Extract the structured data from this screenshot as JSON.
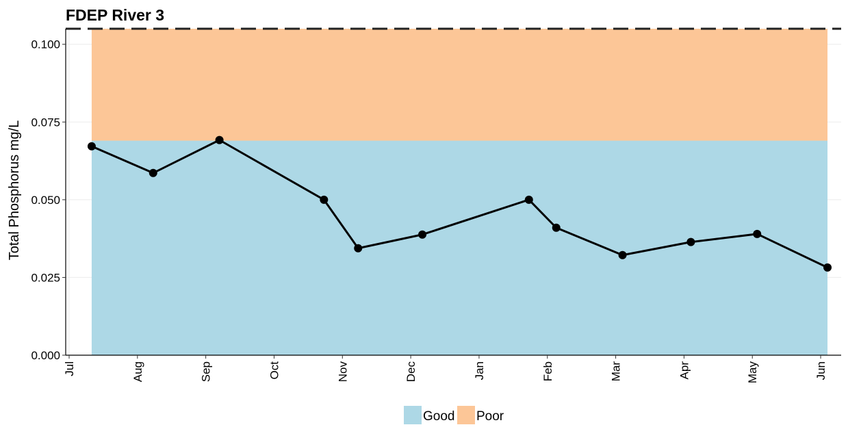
{
  "chart_data": {
    "type": "line",
    "title": "FDEP River 3",
    "xlabel": "",
    "ylabel": "Total Phosphorus mg/L",
    "ylim": [
      0,
      0.105
    ],
    "y_ticks": [
      "0.000",
      "0.025",
      "0.050",
      "0.075",
      "0.100"
    ],
    "y_tick_values": [
      0,
      0.025,
      0.05,
      0.075,
      0.1
    ],
    "x_ticks": [
      "Jul",
      "Aug",
      "Sep",
      "Oct",
      "Nov",
      "Dec",
      "Jan",
      "Feb",
      "Mar",
      "Apr",
      "May",
      "Jun"
    ],
    "x_range_months": [
      -0.05,
      11.3
    ],
    "grid": true,
    "series": [
      {
        "color": "#000000",
        "points": [
          {
            "x_month": 0.33,
            "y": 0.0672
          },
          {
            "x_month": 1.23,
            "y": 0.0586
          },
          {
            "x_month": 2.2,
            "y": 0.0692
          },
          {
            "x_month": 3.73,
            "y": 0.05
          },
          {
            "x_month": 4.23,
            "y": 0.0344
          },
          {
            "x_month": 5.17,
            "y": 0.0388
          },
          {
            "x_month": 6.73,
            "y": 0.05
          },
          {
            "x_month": 7.13,
            "y": 0.041
          },
          {
            "x_month": 8.1,
            "y": 0.0322
          },
          {
            "x_month": 9.1,
            "y": 0.0364
          },
          {
            "x_month": 10.07,
            "y": 0.039
          },
          {
            "x_month": 11.1,
            "y": 0.0282
          }
        ]
      }
    ],
    "bands": [
      {
        "name": "Good",
        "color": "#ADD8E6",
        "y_from": 0,
        "y_to": 0.069
      },
      {
        "name": "Poor",
        "color": "#FCC697",
        "y_from": 0.069,
        "y_to": 0.105
      }
    ],
    "band_x_range_months": [
      0.33,
      11.1
    ],
    "reference_line": {
      "y": 0.105,
      "style": "dashed",
      "color": "#222222"
    },
    "legend": {
      "position": "bottom",
      "entries": [
        {
          "label": "Good",
          "color": "#ADD8E6"
        },
        {
          "label": "Poor",
          "color": "#FCC697"
        }
      ]
    }
  }
}
